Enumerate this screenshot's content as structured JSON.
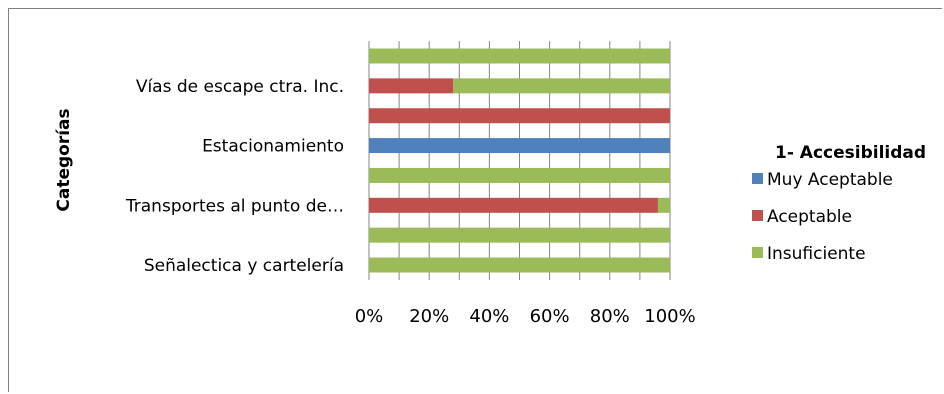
{
  "chart_data": {
    "type": "bar",
    "orientation": "horizontal",
    "stacked": "percent",
    "ylabel": "Categorías",
    "xlabel": "",
    "xlim": [
      0,
      100
    ],
    "x_ticks": [
      "0%",
      "20%",
      "40%",
      "60%",
      "80%",
      "100%"
    ],
    "categories": [
      "",
      "Vías de escape ctra. Inc.",
      "",
      "Estacionamiento",
      "",
      "Transportes al punto de…",
      "",
      "Señalectica y cartelería"
    ],
    "series": [
      {
        "name": "Muy Aceptable",
        "color": "#4f81bd",
        "values": [
          0,
          0,
          0,
          100,
          0,
          0,
          0,
          0
        ]
      },
      {
        "name": "Aceptable",
        "color": "#c0504d",
        "values": [
          0,
          28,
          100,
          0,
          0,
          96,
          0,
          0
        ]
      },
      {
        "name": "Insuficiente",
        "color": "#9bbb59",
        "values": [
          100,
          72,
          0,
          0,
          100,
          4,
          100,
          100
        ]
      }
    ],
    "legend_title": "1- Accesibilidad",
    "legend_position": "right",
    "grid": true
  }
}
